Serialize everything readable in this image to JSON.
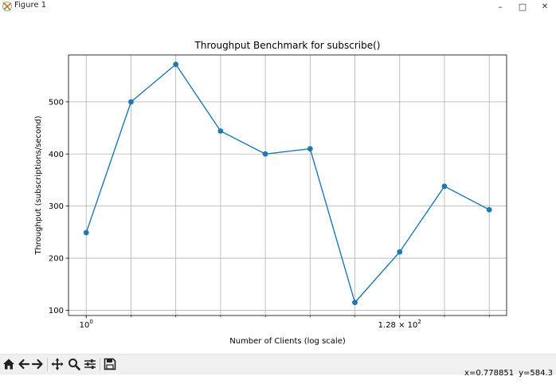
{
  "window": {
    "title": "Figure 1",
    "controls": {
      "minimize": "–",
      "maximize": "□",
      "close": "✕"
    }
  },
  "chart_data": {
    "type": "line",
    "title": "Throughput Benchmark for subscribe()",
    "xlabel": "Number of Clients (log scale)",
    "ylabel": "Throughput (subscriptions/second)",
    "x_scale": "log2",
    "x": [
      1,
      2,
      4,
      8,
      16,
      32,
      64,
      128,
      256,
      512
    ],
    "y": [
      249,
      500,
      572,
      444,
      400,
      410,
      115,
      212,
      338,
      293
    ],
    "xlim": [
      0.76,
      670
    ],
    "ylim": [
      90,
      590
    ],
    "xticks": [
      {
        "value": 1,
        "base": "10",
        "exp": "0"
      },
      {
        "value": 128,
        "mantissa": "1.28",
        "base": "10",
        "exp": "2"
      }
    ],
    "yticks": [
      100,
      200,
      300,
      400,
      500
    ],
    "grid": true,
    "color": "#1f77b4",
    "marker": "circle"
  },
  "toolbar": {
    "buttons": [
      {
        "name": "home-button",
        "icon": "home-icon"
      },
      {
        "name": "back-button",
        "icon": "arrow-left-icon"
      },
      {
        "name": "forward-button",
        "icon": "arrow-right-icon"
      },
      {
        "name": "pan-button",
        "icon": "move-icon"
      },
      {
        "name": "zoom-button",
        "icon": "zoom-icon"
      },
      {
        "name": "configure-subplots-button",
        "icon": "sliders-icon"
      },
      {
        "name": "save-button",
        "icon": "save-icon"
      }
    ],
    "coords": {
      "x": "x=0.778851",
      "y": "y=584.3"
    }
  }
}
